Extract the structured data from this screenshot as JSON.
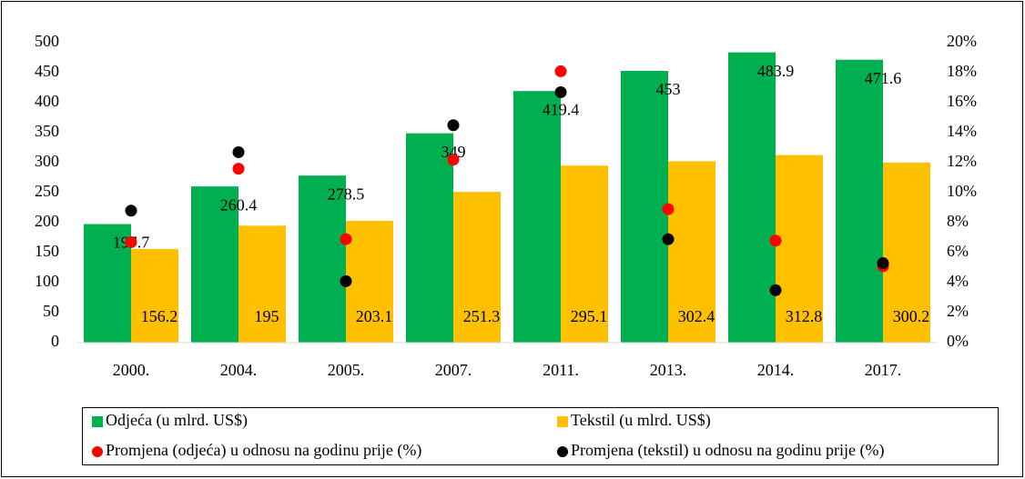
{
  "chart_data": {
    "type": "bar",
    "categories": [
      "2000.",
      "2004.",
      "2005.",
      "2007.",
      "2011.",
      "2013.",
      "2014.",
      "2017."
    ],
    "series": [
      {
        "name": "Odjeća (u mlrd. US$)",
        "type": "bar",
        "color": "#00b050",
        "values": [
          197.7,
          260.4,
          278.5,
          349,
          419.4,
          453,
          483.9,
          471.6
        ]
      },
      {
        "name": "Tekstil (u mlrd. US$)",
        "type": "bar",
        "color": "#ffc000",
        "values": [
          156.2,
          195,
          203.1,
          251.3,
          295.1,
          302.4,
          312.8,
          300.2
        ]
      },
      {
        "name": "Promjena (odjeća) u odnosu na godinu prije (%)",
        "type": "scatter",
        "axis": "y2",
        "color": "#ff0000",
        "values": [
          6.7,
          11.6,
          6.9,
          12.2,
          18.1,
          8.9,
          6.8,
          5.1
        ]
      },
      {
        "name": "Promjena (tekstil) u odnosu na godinu prije (%)",
        "type": "scatter",
        "axis": "y2",
        "color": "#000000",
        "values": [
          8.8,
          12.7,
          4.1,
          14.5,
          16.7,
          6.9,
          3.5,
          5.3
        ]
      }
    ],
    "ylim": [
      0,
      500
    ],
    "yticks": [
      0,
      50,
      100,
      150,
      200,
      250,
      300,
      350,
      400,
      450,
      500
    ],
    "y2lim": [
      0,
      20
    ],
    "y2ticks": [
      {
        "value": 0,
        "label": "0%"
      },
      {
        "value": 2,
        "label": "2%"
      },
      {
        "value": 4,
        "label": "4%"
      },
      {
        "value": 6,
        "label": "6%"
      },
      {
        "value": 8,
        "label": "8%"
      },
      {
        "value": 10,
        "label": "10%"
      },
      {
        "value": 12,
        "label": "12%"
      },
      {
        "value": 14,
        "label": "14%"
      },
      {
        "value": 16,
        "label": "16%"
      },
      {
        "value": 18,
        "label": "18%"
      },
      {
        "value": 20,
        "label": "20%"
      }
    ],
    "legend": "bottom",
    "grid": false
  }
}
